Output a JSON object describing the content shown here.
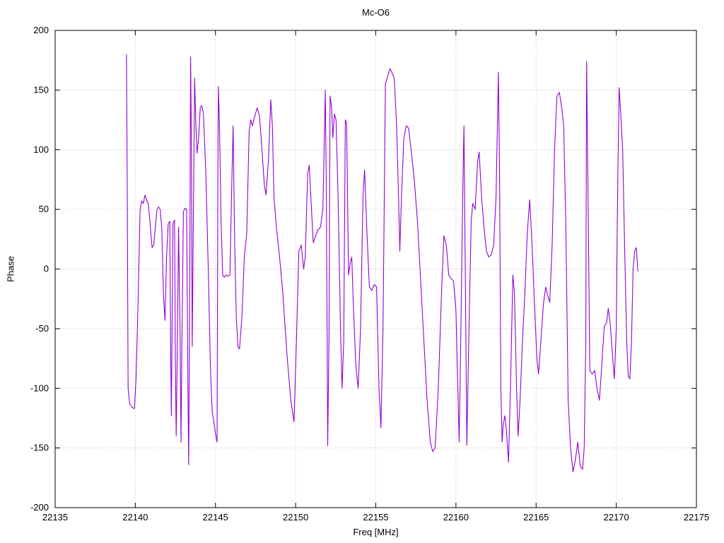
{
  "chart_data": {
    "type": "line",
    "title": "Mc-O6",
    "xlabel": "Freq [MHz]",
    "ylabel": "Phase",
    "xlim": [
      22135,
      22175
    ],
    "ylim": [
      -200,
      200
    ],
    "x_ticks": [
      22135,
      22140,
      22145,
      22150,
      22155,
      22160,
      22165,
      22170,
      22175
    ],
    "y_ticks": [
      -200,
      -150,
      -100,
      -50,
      0,
      50,
      100,
      150,
      200
    ],
    "grid": true,
    "legend_position": "none",
    "line_color": "#9400d3",
    "background_color": "#ffffff",
    "series": [
      {
        "name": "Mc-O6 phase",
        "points": [
          [
            22139.45,
            180
          ],
          [
            22139.5,
            60
          ],
          [
            22139.55,
            -100
          ],
          [
            22139.65,
            -113
          ],
          [
            22139.8,
            -116
          ],
          [
            22139.95,
            -117
          ],
          [
            22140.05,
            -90
          ],
          [
            22140.15,
            -40
          ],
          [
            22140.3,
            50
          ],
          [
            22140.4,
            57
          ],
          [
            22140.5,
            55
          ],
          [
            22140.6,
            62
          ],
          [
            22140.7,
            58
          ],
          [
            22140.8,
            55
          ],
          [
            22140.9,
            42
          ],
          [
            22141.0,
            25
          ],
          [
            22141.05,
            18
          ],
          [
            22141.15,
            20
          ],
          [
            22141.25,
            35
          ],
          [
            22141.35,
            50
          ],
          [
            22141.45,
            52
          ],
          [
            22141.55,
            50
          ],
          [
            22141.65,
            35
          ],
          [
            22141.75,
            -20
          ],
          [
            22141.85,
            -43
          ],
          [
            22141.95,
            10
          ],
          [
            22142.05,
            38
          ],
          [
            22142.15,
            40
          ],
          [
            22142.2,
            -60
          ],
          [
            22142.25,
            -123
          ],
          [
            22142.3,
            -40
          ],
          [
            22142.35,
            38
          ],
          [
            22142.45,
            41
          ],
          [
            22142.5,
            -80
          ],
          [
            22142.55,
            -140
          ],
          [
            22142.6,
            -90
          ],
          [
            22142.7,
            35
          ],
          [
            22142.8,
            -60
          ],
          [
            22142.85,
            -145
          ],
          [
            22142.9,
            -70
          ],
          [
            22143.0,
            48
          ],
          [
            22143.1,
            51
          ],
          [
            22143.2,
            50
          ],
          [
            22143.28,
            -100
          ],
          [
            22143.33,
            -164
          ],
          [
            22143.4,
            0
          ],
          [
            22143.45,
            178
          ],
          [
            22143.5,
            100
          ],
          [
            22143.55,
            -65
          ],
          [
            22143.62,
            40
          ],
          [
            22143.7,
            160
          ],
          [
            22143.78,
            120
          ],
          [
            22143.85,
            97
          ],
          [
            22143.95,
            110
          ],
          [
            22144.05,
            135
          ],
          [
            22144.15,
            137
          ],
          [
            22144.25,
            130
          ],
          [
            22144.4,
            80
          ],
          [
            22144.55,
            0
          ],
          [
            22144.7,
            -90
          ],
          [
            22144.8,
            -120
          ],
          [
            22144.9,
            -128
          ],
          [
            22145.0,
            -138
          ],
          [
            22145.1,
            -145
          ],
          [
            22145.15,
            80
          ],
          [
            22145.18,
            153
          ],
          [
            22145.25,
            120
          ],
          [
            22145.35,
            40
          ],
          [
            22145.45,
            -5
          ],
          [
            22145.55,
            -7
          ],
          [
            22145.65,
            -5
          ],
          [
            22145.75,
            -6
          ],
          [
            22145.9,
            -5
          ],
          [
            22146.0,
            60
          ],
          [
            22146.1,
            120
          ],
          [
            22146.2,
            20
          ],
          [
            22146.3,
            -40
          ],
          [
            22146.4,
            -65
          ],
          [
            22146.5,
            -67
          ],
          [
            22146.65,
            -40
          ],
          [
            22146.8,
            10
          ],
          [
            22146.95,
            30
          ],
          [
            22147.1,
            115
          ],
          [
            22147.2,
            125
          ],
          [
            22147.3,
            120
          ],
          [
            22147.45,
            128
          ],
          [
            22147.6,
            135
          ],
          [
            22147.75,
            128
          ],
          [
            22147.9,
            100
          ],
          [
            22148.05,
            70
          ],
          [
            22148.15,
            62
          ],
          [
            22148.3,
            90
          ],
          [
            22148.45,
            142
          ],
          [
            22148.55,
            120
          ],
          [
            22148.65,
            60
          ],
          [
            22148.8,
            35
          ],
          [
            22149.0,
            10
          ],
          [
            22149.2,
            -20
          ],
          [
            22149.45,
            -70
          ],
          [
            22149.7,
            -110
          ],
          [
            22149.9,
            -128
          ],
          [
            22150.05,
            -60
          ],
          [
            22150.2,
            15
          ],
          [
            22150.35,
            20
          ],
          [
            22150.5,
            0
          ],
          [
            22150.6,
            10
          ],
          [
            22150.75,
            80
          ],
          [
            22150.85,
            87
          ],
          [
            22150.95,
            60
          ],
          [
            22151.1,
            22
          ],
          [
            22151.25,
            28
          ],
          [
            22151.4,
            33
          ],
          [
            22151.55,
            35
          ],
          [
            22151.7,
            50
          ],
          [
            22151.85,
            150
          ],
          [
            22151.92,
            60
          ],
          [
            22152.0,
            -148
          ],
          [
            22152.08,
            -60
          ],
          [
            22152.15,
            145
          ],
          [
            22152.25,
            135
          ],
          [
            22152.32,
            110
          ],
          [
            22152.42,
            130
          ],
          [
            22152.52,
            125
          ],
          [
            22152.65,
            60
          ],
          [
            22152.8,
            -50
          ],
          [
            22152.9,
            -100
          ],
          [
            22153.0,
            -60
          ],
          [
            22153.1,
            125
          ],
          [
            22153.18,
            122
          ],
          [
            22153.3,
            -5
          ],
          [
            22153.4,
            5
          ],
          [
            22153.5,
            10
          ],
          [
            22153.6,
            -30
          ],
          [
            22153.75,
            -80
          ],
          [
            22153.9,
            -100
          ],
          [
            22154.05,
            -50
          ],
          [
            22154.2,
            60
          ],
          [
            22154.3,
            83
          ],
          [
            22154.45,
            30
          ],
          [
            22154.6,
            -15
          ],
          [
            22154.75,
            -18
          ],
          [
            22154.9,
            -13
          ],
          [
            22155.05,
            -15
          ],
          [
            22155.2,
            -100
          ],
          [
            22155.32,
            -133
          ],
          [
            22155.45,
            -50
          ],
          [
            22155.6,
            155
          ],
          [
            22155.75,
            162
          ],
          [
            22155.88,
            168
          ],
          [
            22156.0,
            165
          ],
          [
            22156.15,
            160
          ],
          [
            22156.3,
            120
          ],
          [
            22156.42,
            60
          ],
          [
            22156.5,
            15
          ],
          [
            22156.6,
            60
          ],
          [
            22156.75,
            110
          ],
          [
            22156.9,
            120
          ],
          [
            22157.05,
            118
          ],
          [
            22157.2,
            100
          ],
          [
            22157.4,
            75
          ],
          [
            22157.6,
            40
          ],
          [
            22157.8,
            -10
          ],
          [
            22158.0,
            -60
          ],
          [
            22158.2,
            -110
          ],
          [
            22158.4,
            -145
          ],
          [
            22158.55,
            -153
          ],
          [
            22158.7,
            -150
          ],
          [
            22158.9,
            -100
          ],
          [
            22159.1,
            -20
          ],
          [
            22159.25,
            28
          ],
          [
            22159.4,
            20
          ],
          [
            22159.55,
            -5
          ],
          [
            22159.7,
            -8
          ],
          [
            22159.85,
            -10
          ],
          [
            22160.0,
            -35
          ],
          [
            22160.1,
            -90
          ],
          [
            22160.2,
            -145
          ],
          [
            22160.3,
            -60
          ],
          [
            22160.42,
            60
          ],
          [
            22160.5,
            120
          ],
          [
            22160.58,
            0
          ],
          [
            22160.68,
            -148
          ],
          [
            22160.8,
            -60
          ],
          [
            22160.95,
            40
          ],
          [
            22161.05,
            55
          ],
          [
            22161.2,
            50
          ],
          [
            22161.35,
            90
          ],
          [
            22161.45,
            98
          ],
          [
            22161.6,
            60
          ],
          [
            22161.75,
            35
          ],
          [
            22161.9,
            15
          ],
          [
            22162.05,
            10
          ],
          [
            22162.2,
            12
          ],
          [
            22162.35,
            20
          ],
          [
            22162.5,
            60
          ],
          [
            22162.65,
            165
          ],
          [
            22162.72,
            80
          ],
          [
            22162.8,
            -100
          ],
          [
            22162.88,
            -145
          ],
          [
            22162.95,
            -130
          ],
          [
            22163.05,
            -123
          ],
          [
            22163.15,
            -135
          ],
          [
            22163.28,
            -162
          ],
          [
            22163.4,
            -100
          ],
          [
            22163.55,
            -5
          ],
          [
            22163.65,
            -20
          ],
          [
            22163.78,
            -100
          ],
          [
            22163.88,
            -140
          ],
          [
            22164.0,
            -110
          ],
          [
            22164.15,
            -60
          ],
          [
            22164.3,
            -20
          ],
          [
            22164.45,
            30
          ],
          [
            22164.6,
            58
          ],
          [
            22164.75,
            20
          ],
          [
            22164.9,
            -30
          ],
          [
            22165.05,
            -75
          ],
          [
            22165.15,
            -88
          ],
          [
            22165.3,
            -60
          ],
          [
            22165.45,
            -30
          ],
          [
            22165.6,
            -15
          ],
          [
            22165.72,
            -22
          ],
          [
            22165.85,
            -28
          ],
          [
            22166.0,
            20
          ],
          [
            22166.15,
            100
          ],
          [
            22166.3,
            145
          ],
          [
            22166.45,
            148
          ],
          [
            22166.6,
            135
          ],
          [
            22166.72,
            120
          ],
          [
            22166.85,
            40
          ],
          [
            22167.0,
            -110
          ],
          [
            22167.15,
            -150
          ],
          [
            22167.3,
            -170
          ],
          [
            22167.45,
            -160
          ],
          [
            22167.6,
            -145
          ],
          [
            22167.75,
            -165
          ],
          [
            22167.9,
            -168
          ],
          [
            22168.0,
            -150
          ],
          [
            22168.1,
            -60
          ],
          [
            22168.15,
            174
          ],
          [
            22168.25,
            50
          ],
          [
            22168.35,
            -85
          ],
          [
            22168.5,
            -88
          ],
          [
            22168.65,
            -85
          ],
          [
            22168.8,
            -100
          ],
          [
            22168.95,
            -110
          ],
          [
            22169.1,
            -80
          ],
          [
            22169.25,
            -48
          ],
          [
            22169.4,
            -45
          ],
          [
            22169.5,
            -33
          ],
          [
            22169.62,
            -45
          ],
          [
            22169.75,
            -70
          ],
          [
            22169.88,
            -92
          ],
          [
            22170.0,
            -50
          ],
          [
            22170.1,
            80
          ],
          [
            22170.18,
            152
          ],
          [
            22170.28,
            130
          ],
          [
            22170.4,
            100
          ],
          [
            22170.52,
            20
          ],
          [
            22170.65,
            -60
          ],
          [
            22170.75,
            -90
          ],
          [
            22170.85,
            -92
          ],
          [
            22170.95,
            -60
          ],
          [
            22171.05,
            0
          ],
          [
            22171.15,
            15
          ],
          [
            22171.25,
            18
          ],
          [
            22171.35,
            -2
          ]
        ]
      }
    ]
  }
}
